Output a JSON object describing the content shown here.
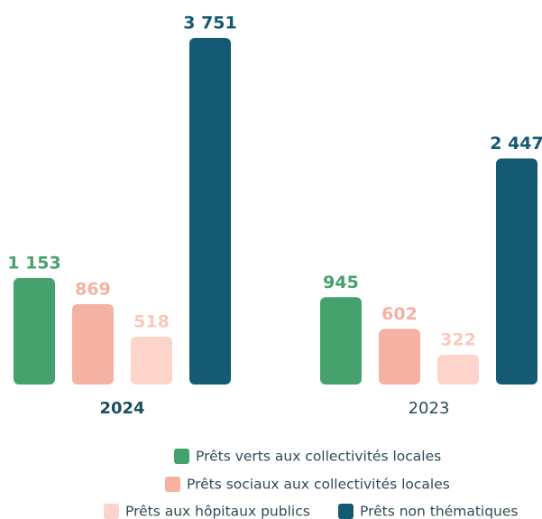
{
  "chart_data": {
    "type": "bar",
    "categories": [
      "2024",
      "2023"
    ],
    "series": [
      {
        "name": "Prêts verts aux collectivités locales",
        "color": "#46a26c",
        "values": [
          1153,
          945
        ],
        "value_labels": [
          "1 153",
          "945"
        ]
      },
      {
        "name": "Prêts sociaux aux collectivités locales",
        "color": "#f5b1a1",
        "values": [
          869,
          602
        ],
        "value_labels": [
          "869",
          "602"
        ]
      },
      {
        "name": "Prêts aux hôpitaux publics",
        "color": "#fdd4ca",
        "values": [
          518,
          322
        ],
        "value_labels": [
          "518",
          "322"
        ]
      },
      {
        "name": "Prêts non thématiques",
        "color": "#155a73",
        "values": [
          3751,
          2447
        ],
        "value_labels": [
          "3 751",
          "2 447"
        ]
      }
    ]
  }
}
